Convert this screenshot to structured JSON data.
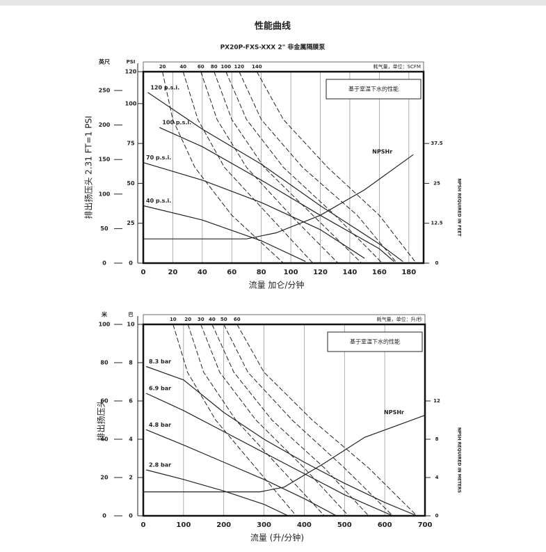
{
  "chart_data": [
    {
      "type": "line",
      "title": "性能曲线",
      "subtitle": "PX20P-FXS-XXX 2\" 非金属隔膜泵",
      "xlabel": "流量 加仑/分钟",
      "ylabel": "排出扬压头 2.31 FT=1 PSI",
      "inner_unit": "PSI",
      "outer_unit": "英尺",
      "air_label": "耗气量，单位：SCFM",
      "note": "基于室温下水的性能",
      "y2label": "NPSH REQUIRED IN FEET",
      "xlim": [
        0,
        190
      ],
      "xticks": [
        0,
        20,
        40,
        60,
        80,
        100,
        120,
        140,
        160,
        180
      ],
      "grid": true,
      "ylim": [
        0,
        120
      ],
      "yticks": [
        0,
        25,
        50,
        75,
        100,
        120
      ],
      "ylim_outer": [
        0,
        277.2
      ],
      "yticks_outer": [
        0,
        50,
        100,
        150,
        200,
        250
      ],
      "y2lim": [
        0,
        60
      ],
      "y2ticks": [
        0,
        12.5,
        25,
        37.5
      ],
      "series": [
        {
          "name": "120 p.s.i.",
          "color": "#222222",
          "x": [
            3,
            40,
            80,
            120,
            160,
            176
          ],
          "values": [
            107,
            84,
            62,
            36,
            12,
            1
          ]
        },
        {
          "name": "100 p.s.i.",
          "color": "#222222",
          "x": [
            11,
            40,
            80,
            120,
            160,
            170
          ],
          "values": [
            85,
            73,
            52,
            30,
            9,
            1
          ]
        },
        {
          "name": "70 p.s.i.",
          "color": "#222222",
          "x": [
            0,
            40,
            80,
            120,
            150
          ],
          "values": [
            63,
            52,
            38,
            21,
            3
          ]
        },
        {
          "name": "40 p.s.i.",
          "color": "#222222",
          "x": [
            0,
            40,
            80,
            110
          ],
          "values": [
            36,
            27,
            14,
            1
          ]
        },
        {
          "name": "NPSHr",
          "color": "#222222",
          "axis": "y2",
          "x": [
            0,
            70,
            90,
            120,
            150,
            183
          ],
          "values": [
            7.6,
            7.6,
            9.5,
            15,
            23,
            34
          ]
        },
        {
          "name": "20",
          "color": "#222222",
          "dashed": true,
          "x": [
            13,
            20,
            35,
            60,
            95
          ],
          "values": [
            120,
            90,
            60,
            30,
            0
          ]
        },
        {
          "name": "40",
          "color": "#222222",
          "dashed": true,
          "x": [
            27,
            37,
            55,
            85,
            115
          ],
          "values": [
            120,
            90,
            60,
            30,
            0
          ]
        },
        {
          "name": "60",
          "color": "#222222",
          "dashed": true,
          "x": [
            39,
            50,
            70,
            100,
            132
          ],
          "values": [
            120,
            90,
            60,
            30,
            0
          ]
        },
        {
          "name": "80",
          "color": "#222222",
          "dashed": true,
          "x": [
            48,
            60,
            82,
            115,
            148
          ],
          "values": [
            120,
            90,
            60,
            30,
            0
          ]
        },
        {
          "name": "100",
          "color": "#222222",
          "dashed": true,
          "x": [
            56,
            70,
            95,
            130,
            162
          ],
          "values": [
            120,
            90,
            60,
            30,
            0
          ]
        },
        {
          "name": "120",
          "color": "#222222",
          "dashed": true,
          "x": [
            65,
            80,
            108,
            145,
            172
          ],
          "values": [
            120,
            90,
            60,
            30,
            0
          ]
        },
        {
          "name": "140",
          "color": "#222222",
          "dashed": true,
          "x": [
            77,
            95,
            125,
            160,
            185
          ],
          "values": [
            120,
            90,
            60,
            30,
            0
          ]
        }
      ]
    },
    {
      "type": "line",
      "xlabel": "流量 (升/分钟)",
      "ylabel": "排出扬压头",
      "inner_unit": "巴",
      "outer_unit": "米",
      "air_label": "耗气量，单位：升/秒",
      "note": "基于室温下水的性能",
      "y2label": "NPSH REQUIRED IN METERS",
      "xlim": [
        0,
        700
      ],
      "xticks": [
        0,
        100,
        200,
        300,
        400,
        500,
        600,
        700
      ],
      "grid": true,
      "ylim": [
        0,
        10
      ],
      "yticks": [
        0,
        2,
        4,
        6,
        8,
        10
      ],
      "ylim_outer": [
        0,
        100
      ],
      "yticks_outer": [
        0,
        20,
        40,
        60,
        80,
        100
      ],
      "y2lim": [
        0,
        20
      ],
      "y2ticks": [
        0,
        4,
        8,
        12
      ],
      "series": [
        {
          "name": "8.3 bar",
          "color": "#222222",
          "x": [
            7,
            100,
            200,
            300,
            400,
            500,
            600,
            680
          ],
          "values": [
            7.8,
            7.1,
            5.4,
            4.0,
            2.8,
            1.7,
            0.7,
            0
          ]
        },
        {
          "name": "6.9 bar",
          "color": "#222222",
          "x": [
            7,
            100,
            200,
            300,
            400,
            500,
            620
          ],
          "values": [
            6.4,
            5.5,
            4.4,
            3.3,
            2.2,
            1.1,
            0
          ]
        },
        {
          "name": "4.8 bar",
          "color": "#222222",
          "x": [
            7,
            100,
            200,
            300,
            400,
            480
          ],
          "values": [
            4.5,
            3.7,
            2.8,
            1.9,
            0.9,
            0
          ]
        },
        {
          "name": "2.8 bar",
          "color": "#222222",
          "x": [
            7,
            100,
            200,
            300,
            360
          ],
          "values": [
            2.4,
            1.9,
            1.3,
            0.6,
            0
          ]
        },
        {
          "name": "NPSHr",
          "color": "#222222",
          "axis": "y2",
          "x": [
            0,
            290,
            350,
            450,
            550,
            700
          ],
          "values": [
            2.5,
            2.5,
            3,
            5.5,
            8.2,
            10.5
          ]
        },
        {
          "name": "10",
          "color": "#222222",
          "dashed": true,
          "x": [
            74,
            110,
            180,
            280,
            380
          ],
          "values": [
            10,
            7.5,
            5,
            2.5,
            0
          ]
        },
        {
          "name": "20",
          "color": "#222222",
          "dashed": true,
          "x": [
            111,
            150,
            230,
            340,
            450
          ],
          "values": [
            10,
            7.5,
            5,
            2.5,
            0
          ]
        },
        {
          "name": "30",
          "color": "#222222",
          "dashed": true,
          "x": [
            143,
            190,
            280,
            400,
            510
          ],
          "values": [
            10,
            7.5,
            5,
            2.5,
            0
          ]
        },
        {
          "name": "40",
          "color": "#222222",
          "dashed": true,
          "x": [
            171,
            225,
            320,
            450,
            560
          ],
          "values": [
            10,
            7.5,
            5,
            2.5,
            0
          ]
        },
        {
          "name": "50",
          "color": "#222222",
          "dashed": true,
          "x": [
            200,
            260,
            370,
            500,
            620
          ],
          "values": [
            10,
            7.5,
            5,
            2.5,
            0
          ]
        },
        {
          "name": "60",
          "color": "#222222",
          "dashed": true,
          "x": [
            233,
            300,
            420,
            560,
            680
          ],
          "values": [
            10,
            7.5,
            5,
            2.5,
            0
          ]
        }
      ]
    }
  ]
}
